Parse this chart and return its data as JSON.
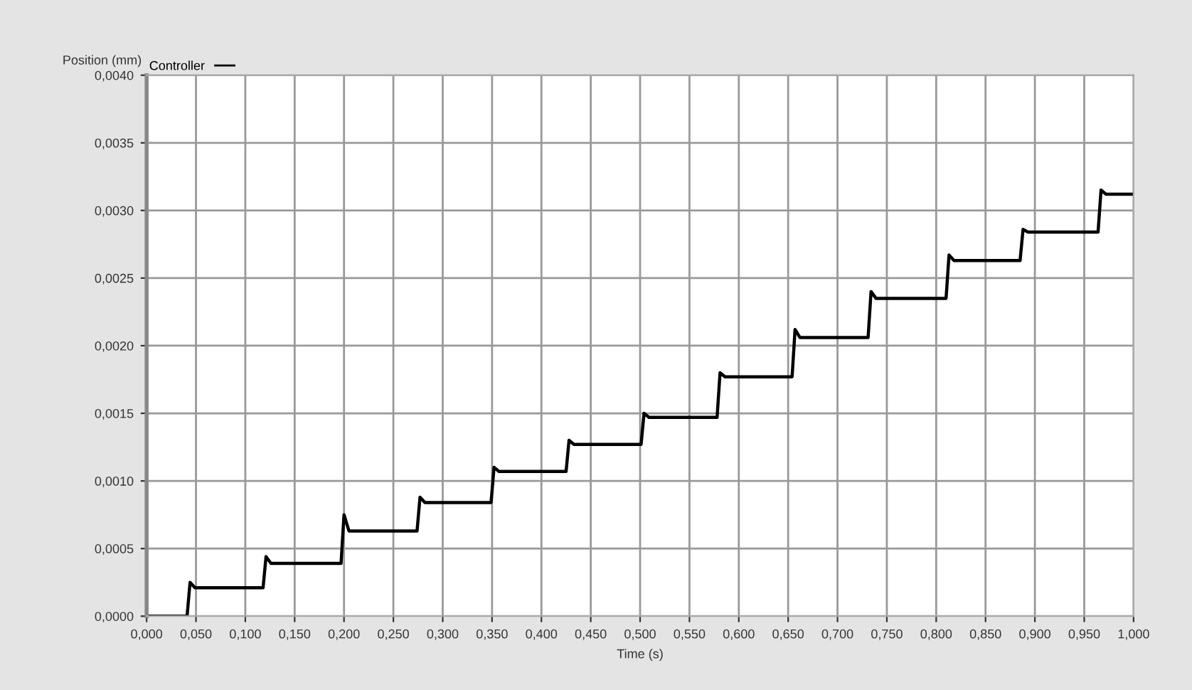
{
  "chart_data": {
    "type": "line",
    "xlabel": "Time (s)",
    "ylabel": "Position (mm)",
    "x": [
      0,
      0.041,
      0.044,
      0.049,
      0.118,
      0.121,
      0.126,
      0.197,
      0.2,
      0.205,
      0.274,
      0.277,
      0.282,
      0.349,
      0.352,
      0.357,
      0.425,
      0.428,
      0.433,
      0.501,
      0.504,
      0.509,
      0.578,
      0.581,
      0.586,
      0.654,
      0.657,
      0.662,
      0.731,
      0.734,
      0.739,
      0.81,
      0.813,
      0.818,
      0.885,
      0.888,
      0.893,
      0.964,
      0.967,
      0.972,
      1.0
    ],
    "series": [
      {
        "name": "Controller",
        "color": "#000000",
        "values": [
          0,
          0,
          0.00025,
          0.00021,
          0.00021,
          0.00044,
          0.00039,
          0.00039,
          0.00075,
          0.00063,
          0.00063,
          0.00088,
          0.00084,
          0.00084,
          0.0011,
          0.00107,
          0.00107,
          0.0013,
          0.00127,
          0.00127,
          0.0015,
          0.00147,
          0.00147,
          0.0018,
          0.00177,
          0.00177,
          0.00212,
          0.00206,
          0.00206,
          0.0024,
          0.00235,
          0.00235,
          0.00267,
          0.00263,
          0.00263,
          0.00286,
          0.00284,
          0.00284,
          0.00315,
          0.00312,
          0.00312
        ]
      }
    ],
    "xlim": [
      0,
      1.0
    ],
    "ylim": [
      0,
      0.004
    ],
    "xticks": [
      {
        "value": 0,
        "label": "0,000"
      },
      {
        "value": 0.05,
        "label": "0,050"
      },
      {
        "value": 0.1,
        "label": "0,100"
      },
      {
        "value": 0.15,
        "label": "0,150"
      },
      {
        "value": 0.2,
        "label": "0,200"
      },
      {
        "value": 0.25,
        "label": "0,250"
      },
      {
        "value": 0.3,
        "label": "0,300"
      },
      {
        "value": 0.35,
        "label": "0,350"
      },
      {
        "value": 0.4,
        "label": "0,400"
      },
      {
        "value": 0.45,
        "label": "0,450"
      },
      {
        "value": 0.5,
        "label": "0,500"
      },
      {
        "value": 0.55,
        "label": "0,550"
      },
      {
        "value": 0.6,
        "label": "0,600"
      },
      {
        "value": 0.65,
        "label": "0,650"
      },
      {
        "value": 0.7,
        "label": "0,700"
      },
      {
        "value": 0.75,
        "label": "0,750"
      },
      {
        "value": 0.8,
        "label": "0,800"
      },
      {
        "value": 0.85,
        "label": "0,850"
      },
      {
        "value": 0.9,
        "label": "0,900"
      },
      {
        "value": 0.95,
        "label": "0,950"
      },
      {
        "value": 1.0,
        "label": "1,000"
      }
    ],
    "yticks": [
      {
        "value": 0,
        "label": "0,0000"
      },
      {
        "value": 0.0005,
        "label": "0,0005"
      },
      {
        "value": 0.001,
        "label": "0,0010"
      },
      {
        "value": 0.0015,
        "label": "0,0015"
      },
      {
        "value": 0.002,
        "label": "0,0020"
      },
      {
        "value": 0.0025,
        "label": "0,0025"
      },
      {
        "value": 0.003,
        "label": "0,0030"
      },
      {
        "value": 0.0035,
        "label": "0,0035"
      },
      {
        "value": 0.004,
        "label": "0,0040"
      }
    ],
    "grid": true,
    "legend": "top left",
    "marker": "none",
    "line_style": "solid"
  }
}
